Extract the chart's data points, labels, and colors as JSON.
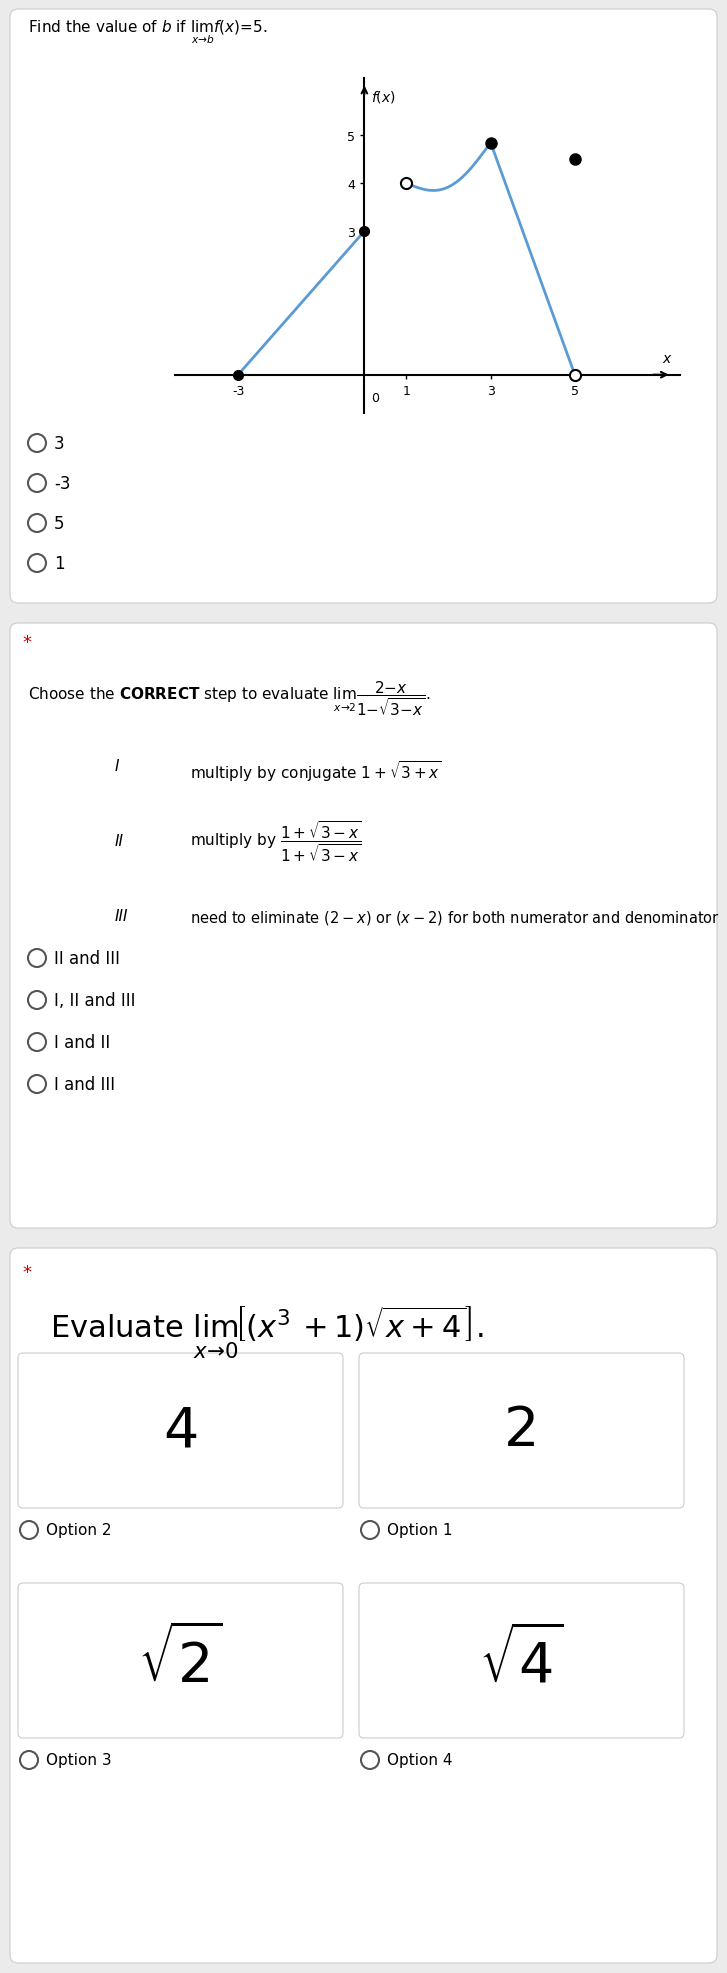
{
  "bg_color": "#ebebeb",
  "card_color": "#ffffff",
  "graph_line_color": "#5b9bd5",
  "star_color": "#cc0000",
  "q1_title_plain": "Find the value of ",
  "q1_options": [
    "3",
    "-3",
    "5",
    "1"
  ],
  "q2_options": [
    "II and III",
    "I, II and III",
    "I and II",
    "I and III"
  ],
  "q3_options": [
    "4",
    "2",
    "\\sqrt{2}",
    "\\sqrt{4}"
  ],
  "q3_labels": [
    "Option 2",
    "Option 1",
    "Option 3",
    "Option 4"
  ]
}
